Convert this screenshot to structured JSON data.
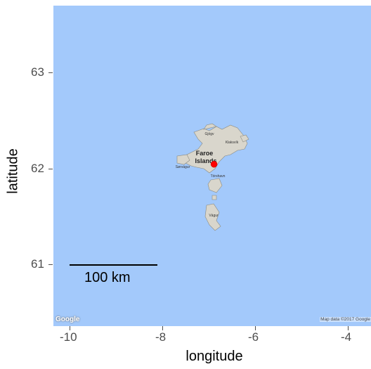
{
  "axes": {
    "y_ticks": [
      "63",
      "62",
      "61"
    ],
    "x_ticks": [
      "-10",
      "-8",
      "-6",
      "-4"
    ],
    "x_title": "longitude",
    "y_title": "latitude"
  },
  "map": {
    "islands_label": "Faroe\nIslands",
    "islands_label_line1": "Faroe",
    "islands_label_line2": "Islands",
    "places": {
      "north": "Gjógv",
      "northeast": "Klaksvík",
      "west": "Sørvágur",
      "capital": "Tórshavn",
      "south": "Vágur"
    },
    "marker": {
      "lon": -6.9,
      "lat": 62.05,
      "color": "#ff0000"
    },
    "water_color": "#a3c9fb"
  },
  "scalebar": {
    "label": "100 km"
  },
  "google_logo": "Google",
  "attribution": "Map data ©2017 Google",
  "chart_data": {
    "type": "scatter",
    "x": [
      -6.9
    ],
    "y": [
      62.05
    ],
    "xlabel": "longitude",
    "ylabel": "latitude",
    "xlim": [
      -10.4,
      -3.6
    ],
    "ylim": [
      60.4,
      63.7
    ],
    "x_ticks": [
      -10,
      -8,
      -6,
      -4
    ],
    "y_ticks": [
      61,
      62,
      63
    ],
    "grid": false
  }
}
